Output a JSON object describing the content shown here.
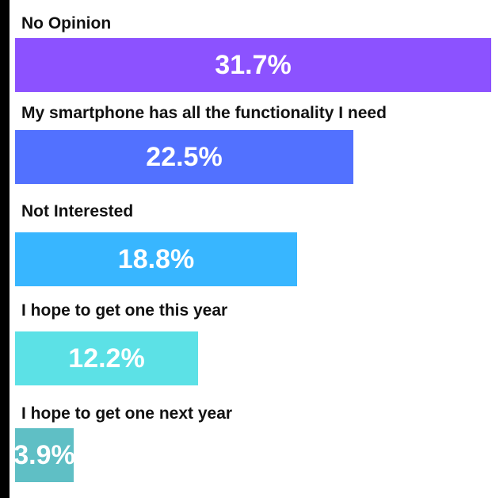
{
  "chart_data": {
    "type": "bar",
    "orientation": "horizontal",
    "categories": [
      "No Opinion",
      "My smartphone has all the functionality I need",
      "Not Interested",
      "I hope to get one this year",
      "I hope to get one next year"
    ],
    "values": [
      31.7,
      22.5,
      18.8,
      12.2,
      3.9
    ],
    "data_labels": [
      "31.7%",
      "22.5%",
      "18.8%",
      "12.2%",
      "3.9%"
    ],
    "colors": [
      "#8c52ff",
      "#5271ff",
      "#38b6ff",
      "#5ce1e6",
      "#5fbfc5"
    ],
    "unit": "%",
    "grid": false,
    "legend": "none"
  }
}
